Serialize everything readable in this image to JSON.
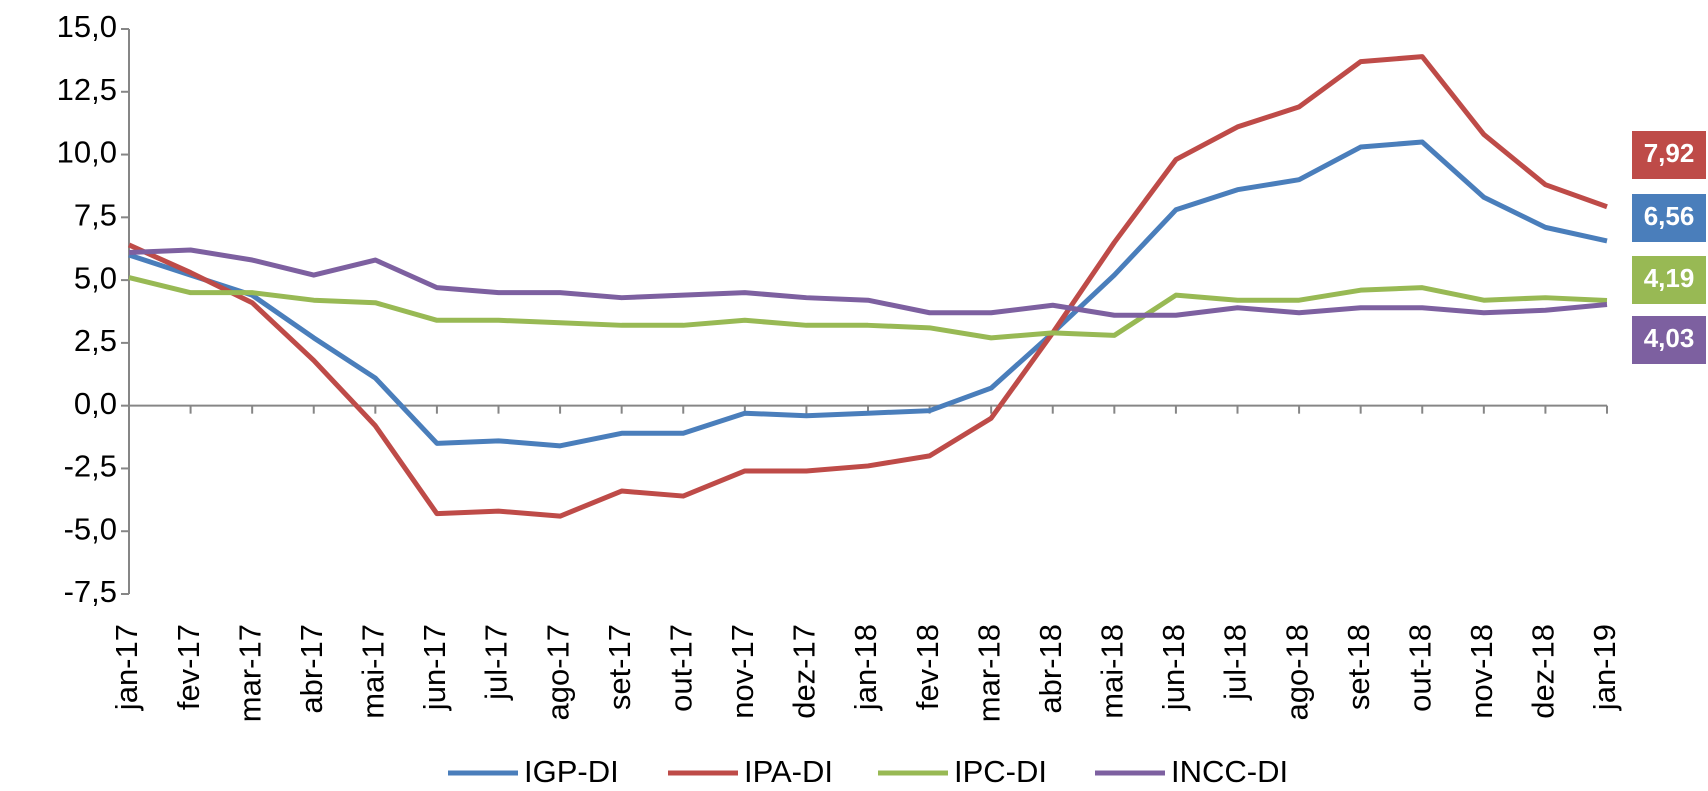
{
  "chart_data": {
    "type": "line",
    "categories": [
      "jan-17",
      "fev-17",
      "mar-17",
      "abr-17",
      "mai-17",
      "jun-17",
      "jul-17",
      "ago-17",
      "set-17",
      "out-17",
      "nov-17",
      "dez-17",
      "jan-18",
      "fev-18",
      "mar-18",
      "abr-18",
      "mai-18",
      "jun-18",
      "jul-18",
      "ago-18",
      "set-18",
      "out-18",
      "nov-18",
      "dez-18",
      "jan-19"
    ],
    "series": [
      {
        "name": "IGP-DI",
        "color": "#4a7ebb",
        "values": [
          6.0,
          5.2,
          4.4,
          2.7,
          1.1,
          -1.5,
          -1.4,
          -1.6,
          -1.1,
          -1.1,
          -0.3,
          -0.4,
          -0.3,
          -0.2,
          0.7,
          2.9,
          5.2,
          7.8,
          8.6,
          9.0,
          10.3,
          10.5,
          8.3,
          7.1,
          6.56
        ],
        "value_labels": [
          null,
          null,
          null,
          null,
          null,
          null,
          null,
          null,
          null,
          null,
          null,
          null,
          null,
          null,
          null,
          null,
          null,
          null,
          null,
          null,
          null,
          null,
          null,
          null,
          "6,56"
        ]
      },
      {
        "name": "IPA-DI",
        "color": "#be4b48",
        "values": [
          6.4,
          5.3,
          4.1,
          1.8,
          -0.8,
          -4.3,
          -4.2,
          -4.4,
          -3.4,
          -3.6,
          -2.6,
          -2.6,
          -2.4,
          -2.0,
          -0.5,
          2.9,
          6.5,
          9.8,
          11.1,
          11.9,
          13.7,
          13.9,
          10.8,
          8.8,
          7.92
        ],
        "value_labels": [
          null,
          null,
          null,
          null,
          null,
          null,
          null,
          null,
          null,
          null,
          null,
          null,
          null,
          null,
          null,
          null,
          null,
          null,
          null,
          null,
          null,
          null,
          null,
          null,
          "7,92"
        ]
      },
      {
        "name": "IPC-DI",
        "color": "#98b954",
        "values": [
          5.1,
          4.5,
          4.5,
          4.2,
          4.1,
          3.4,
          3.4,
          3.3,
          3.2,
          3.2,
          3.4,
          3.2,
          3.2,
          3.1,
          2.7,
          2.9,
          2.8,
          4.4,
          4.2,
          4.2,
          4.6,
          4.7,
          4.2,
          4.3,
          4.19
        ],
        "value_labels": [
          null,
          null,
          null,
          null,
          null,
          null,
          null,
          null,
          null,
          null,
          null,
          null,
          null,
          null,
          null,
          null,
          null,
          null,
          null,
          null,
          null,
          null,
          null,
          null,
          "4,19"
        ]
      },
      {
        "name": "INCC-DI",
        "color": "#7d60a0",
        "values": [
          6.1,
          6.2,
          5.8,
          5.2,
          5.8,
          4.7,
          4.5,
          4.5,
          4.3,
          4.4,
          4.5,
          4.3,
          4.2,
          3.7,
          3.7,
          4.0,
          3.6,
          3.6,
          3.9,
          3.7,
          3.9,
          3.9,
          3.7,
          3.8,
          4.03
        ],
        "value_labels": [
          null,
          null,
          null,
          null,
          null,
          null,
          null,
          null,
          null,
          null,
          null,
          null,
          null,
          null,
          null,
          null,
          null,
          null,
          null,
          null,
          null,
          null,
          null,
          null,
          "4,03"
        ]
      }
    ],
    "ylim": [
      -7.5,
      15
    ],
    "yticks": [
      {
        "value": -7.5,
        "label": "-7,5"
      },
      {
        "value": -5,
        "label": "-5,0"
      },
      {
        "value": -2.5,
        "label": "-2,5"
      },
      {
        "value": 0,
        "label": "0,0"
      },
      {
        "value": 2.5,
        "label": "2,5"
      },
      {
        "value": 5,
        "label": "5,0"
      },
      {
        "value": 7.5,
        "label": "7,5"
      },
      {
        "value": 10,
        "label": "10,0"
      },
      {
        "value": 12.5,
        "label": "12,5"
      },
      {
        "value": 15,
        "label": "15,0"
      }
    ],
    "legend": "bottom"
  }
}
